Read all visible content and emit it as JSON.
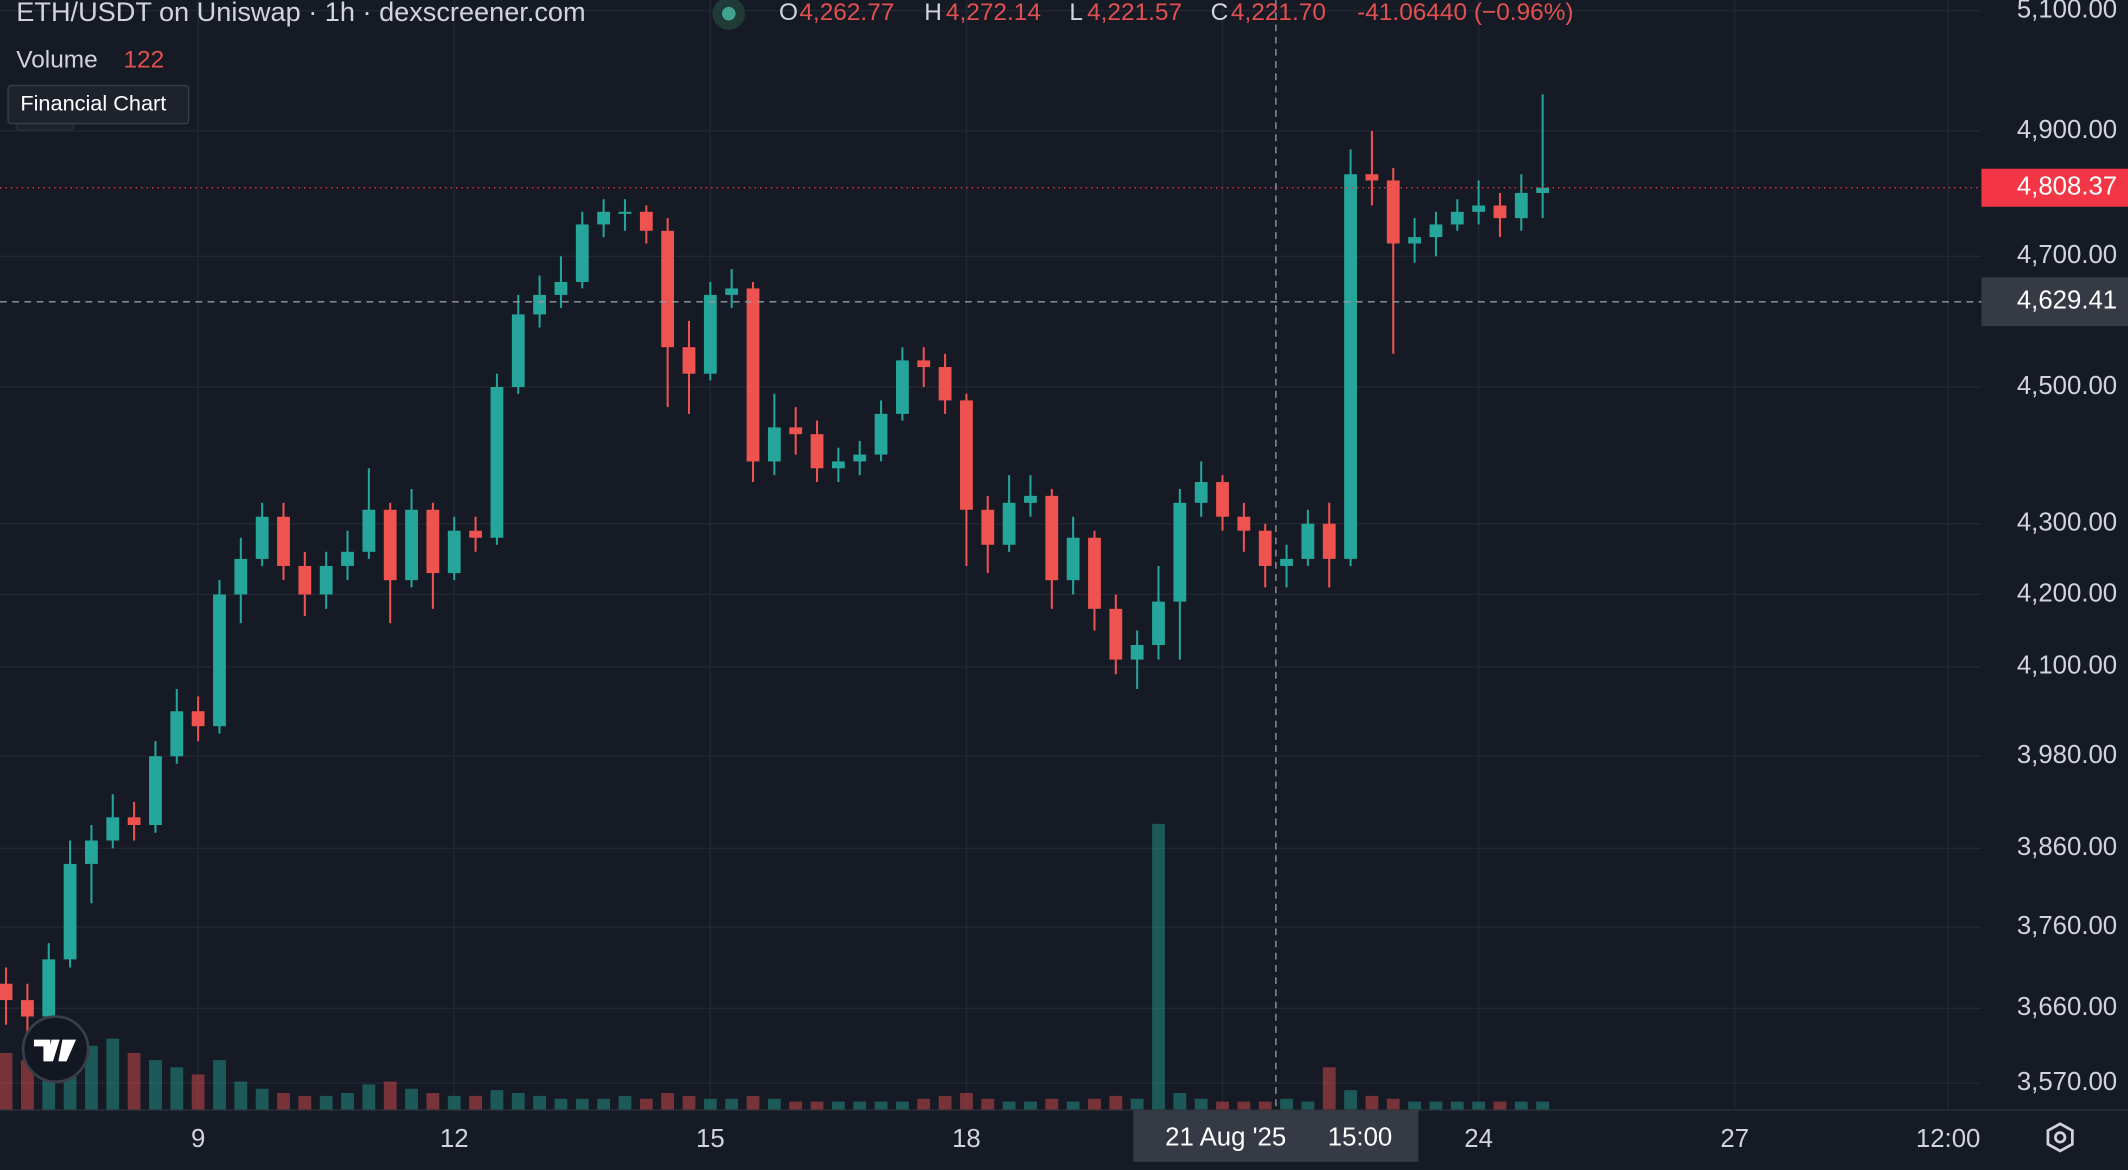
{
  "chart_data": {
    "type": "candlestick",
    "title": "ETH/USDT on Uniswap · 1h · dexscreener.com",
    "legend": {
      "o_key": "O",
      "open": "4,262.77",
      "h_key": "H",
      "high": "4,272.14",
      "l_key": "L",
      "low": "4,221.57",
      "c_key": "C",
      "close": "4,221.70",
      "change": "-41.06440 (−0.96%)"
    },
    "volume_label": "Volume",
    "volume_value": "122",
    "tooltip": "Financial Chart",
    "log_scale": true,
    "grid": true,
    "up_color": "#26a69a",
    "down_color": "#ef5350",
    "xlim": [
      6.679,
      29.89
    ],
    "xticks": [
      9,
      12,
      15,
      18,
      21,
      24,
      27,
      {
        "value": 29.5,
        "label": "12:00"
      }
    ],
    "ylim": [
      3538,
      5118
    ],
    "yticks": [
      {
        "value": 3570,
        "label": "3,570.00"
      },
      {
        "value": 3660,
        "label": "3,660.00"
      },
      {
        "value": 3760,
        "label": "3,760.00"
      },
      {
        "value": 3860,
        "label": "3,860.00"
      },
      {
        "value": 3980,
        "label": "3,980.00"
      },
      {
        "value": 4100,
        "label": "4,100.00"
      },
      {
        "value": 4200,
        "label": "4,200.00"
      },
      {
        "value": 4300,
        "label": "4,300.00"
      },
      {
        "value": 4500,
        "label": "4,500.00"
      },
      {
        "value": 4700,
        "label": "4,700.00"
      },
      {
        "value": 4900,
        "label": "4,900.00"
      },
      {
        "value": 5100,
        "label": "5,100.00"
      }
    ],
    "last_price": {
      "value": 4808.37,
      "label": "4,808.37"
    },
    "crosshair": {
      "x": 21.625,
      "y": 4629.41,
      "y_label": "4,629.41",
      "x_label_date": "21 Aug '25",
      "x_label_time": "15:00"
    },
    "x": [
      6.75,
      7,
      7.25,
      7.5,
      7.75,
      8,
      8.25,
      8.5,
      8.75,
      9,
      9.25,
      9.5,
      9.75,
      10,
      10.25,
      10.5,
      10.75,
      11,
      11.25,
      11.5,
      11.75,
      12,
      12.25,
      12.5,
      12.75,
      13,
      13.25,
      13.5,
      13.75,
      14,
      14.25,
      14.5,
      14.75,
      15,
      15.25,
      15.5,
      15.75,
      16,
      16.25,
      16.5,
      16.75,
      17,
      17.25,
      17.5,
      17.75,
      18,
      18.25,
      18.5,
      18.75,
      19,
      19.25,
      19.5,
      19.75,
      20,
      20.25,
      20.5,
      20.75,
      21,
      21.25,
      21.5,
      21.75,
      22,
      22.25,
      22.5,
      22.75,
      23,
      23.25,
      23.5,
      23.75,
      24,
      24.25,
      24.5,
      24.75
    ],
    "open": [
      3690,
      3670,
      3650,
      3720,
      3840,
      3870,
      3900,
      3890,
      3980,
      4040,
      4020,
      4200,
      4250,
      4310,
      4240,
      4200,
      4240,
      4260,
      4320,
      4220,
      4320,
      4230,
      4290,
      4280,
      4500,
      4610,
      4640,
      4660,
      4750,
      4770,
      4770,
      4740,
      4560,
      4520,
      4640,
      4650,
      4390,
      4440,
      4430,
      4380,
      4390,
      4400,
      4460,
      4540,
      4530,
      4480,
      4320,
      4270,
      4330,
      4340,
      4220,
      4280,
      4180,
      4110,
      4130,
      4190,
      4330,
      4360,
      4310,
      4290,
      4240,
      4250,
      4300,
      4250,
      4830,
      4820,
      4720,
      4730,
      4750,
      4770,
      4780,
      4760,
      4800
    ],
    "high": [
      3710,
      3690,
      3740,
      3870,
      3890,
      3930,
      3920,
      4000,
      4070,
      4060,
      4220,
      4280,
      4330,
      4330,
      4260,
      4260,
      4290,
      4380,
      4330,
      4350,
      4330,
      4310,
      4310,
      4520,
      4640,
      4670,
      4700,
      4770,
      4790,
      4790,
      4780,
      4760,
      4600,
      4660,
      4680,
      4660,
      4490,
      4470,
      4450,
      4410,
      4420,
      4480,
      4560,
      4560,
      4550,
      4490,
      4340,
      4370,
      4370,
      4350,
      4310,
      4290,
      4200,
      4150,
      4240,
      4350,
      4390,
      4370,
      4330,
      4300,
      4270,
      4320,
      4330,
      4870,
      4900,
      4840,
      4760,
      4770,
      4790,
      4820,
      4800,
      4830,
      4960
    ],
    "low": [
      3640,
      3620,
      3640,
      3710,
      3790,
      3860,
      3870,
      3880,
      3970,
      4000,
      4010,
      4160,
      4240,
      4220,
      4170,
      4180,
      4220,
      4250,
      4160,
      4210,
      4180,
      4220,
      4260,
      4270,
      4490,
      4590,
      4620,
      4650,
      4730,
      4740,
      4720,
      4470,
      4460,
      4510,
      4620,
      4360,
      4370,
      4400,
      4360,
      4360,
      4370,
      4390,
      4450,
      4500,
      4460,
      4240,
      4230,
      4260,
      4310,
      4180,
      4200,
      4150,
      4090,
      4070,
      4110,
      4110,
      4310,
      4290,
      4260,
      4210,
      4210,
      4240,
      4210,
      4240,
      4780,
      4550,
      4690,
      4700,
      4740,
      4750,
      4730,
      4740,
      4760
    ],
    "close": [
      3670,
      3650,
      3720,
      3840,
      3870,
      3900,
      3890,
      3980,
      4040,
      4020,
      4200,
      4250,
      4310,
      4240,
      4200,
      4240,
      4260,
      4320,
      4220,
      4320,
      4230,
      4290,
      4280,
      4500,
      4610,
      4640,
      4660,
      4750,
      4770,
      4770,
      4740,
      4560,
      4520,
      4640,
      4650,
      4390,
      4440,
      4430,
      4380,
      4390,
      4400,
      4460,
      4540,
      4530,
      4480,
      4320,
      4270,
      4330,
      4340,
      4220,
      4280,
      4180,
      4110,
      4130,
      4190,
      4330,
      4360,
      4310,
      4290,
      4240,
      4250,
      4300,
      4250,
      4830,
      4820,
      4720,
      4730,
      4750,
      4770,
      4780,
      4760,
      4800,
      4808.37
    ],
    "volume": [
      40,
      35,
      30,
      55,
      45,
      50,
      40,
      35,
      30,
      25,
      35,
      20,
      15,
      12,
      10,
      10,
      12,
      18,
      20,
      15,
      12,
      10,
      10,
      14,
      12,
      10,
      8,
      8,
      8,
      10,
      8,
      12,
      10,
      8,
      8,
      10,
      8,
      6,
      6,
      6,
      6,
      6,
      6,
      8,
      10,
      12,
      8,
      6,
      6,
      8,
      6,
      8,
      10,
      8,
      200,
      12,
      8,
      6,
      6,
      6,
      8,
      6,
      30,
      14,
      10,
      8,
      6,
      6,
      6,
      6,
      6,
      6,
      6
    ]
  }
}
